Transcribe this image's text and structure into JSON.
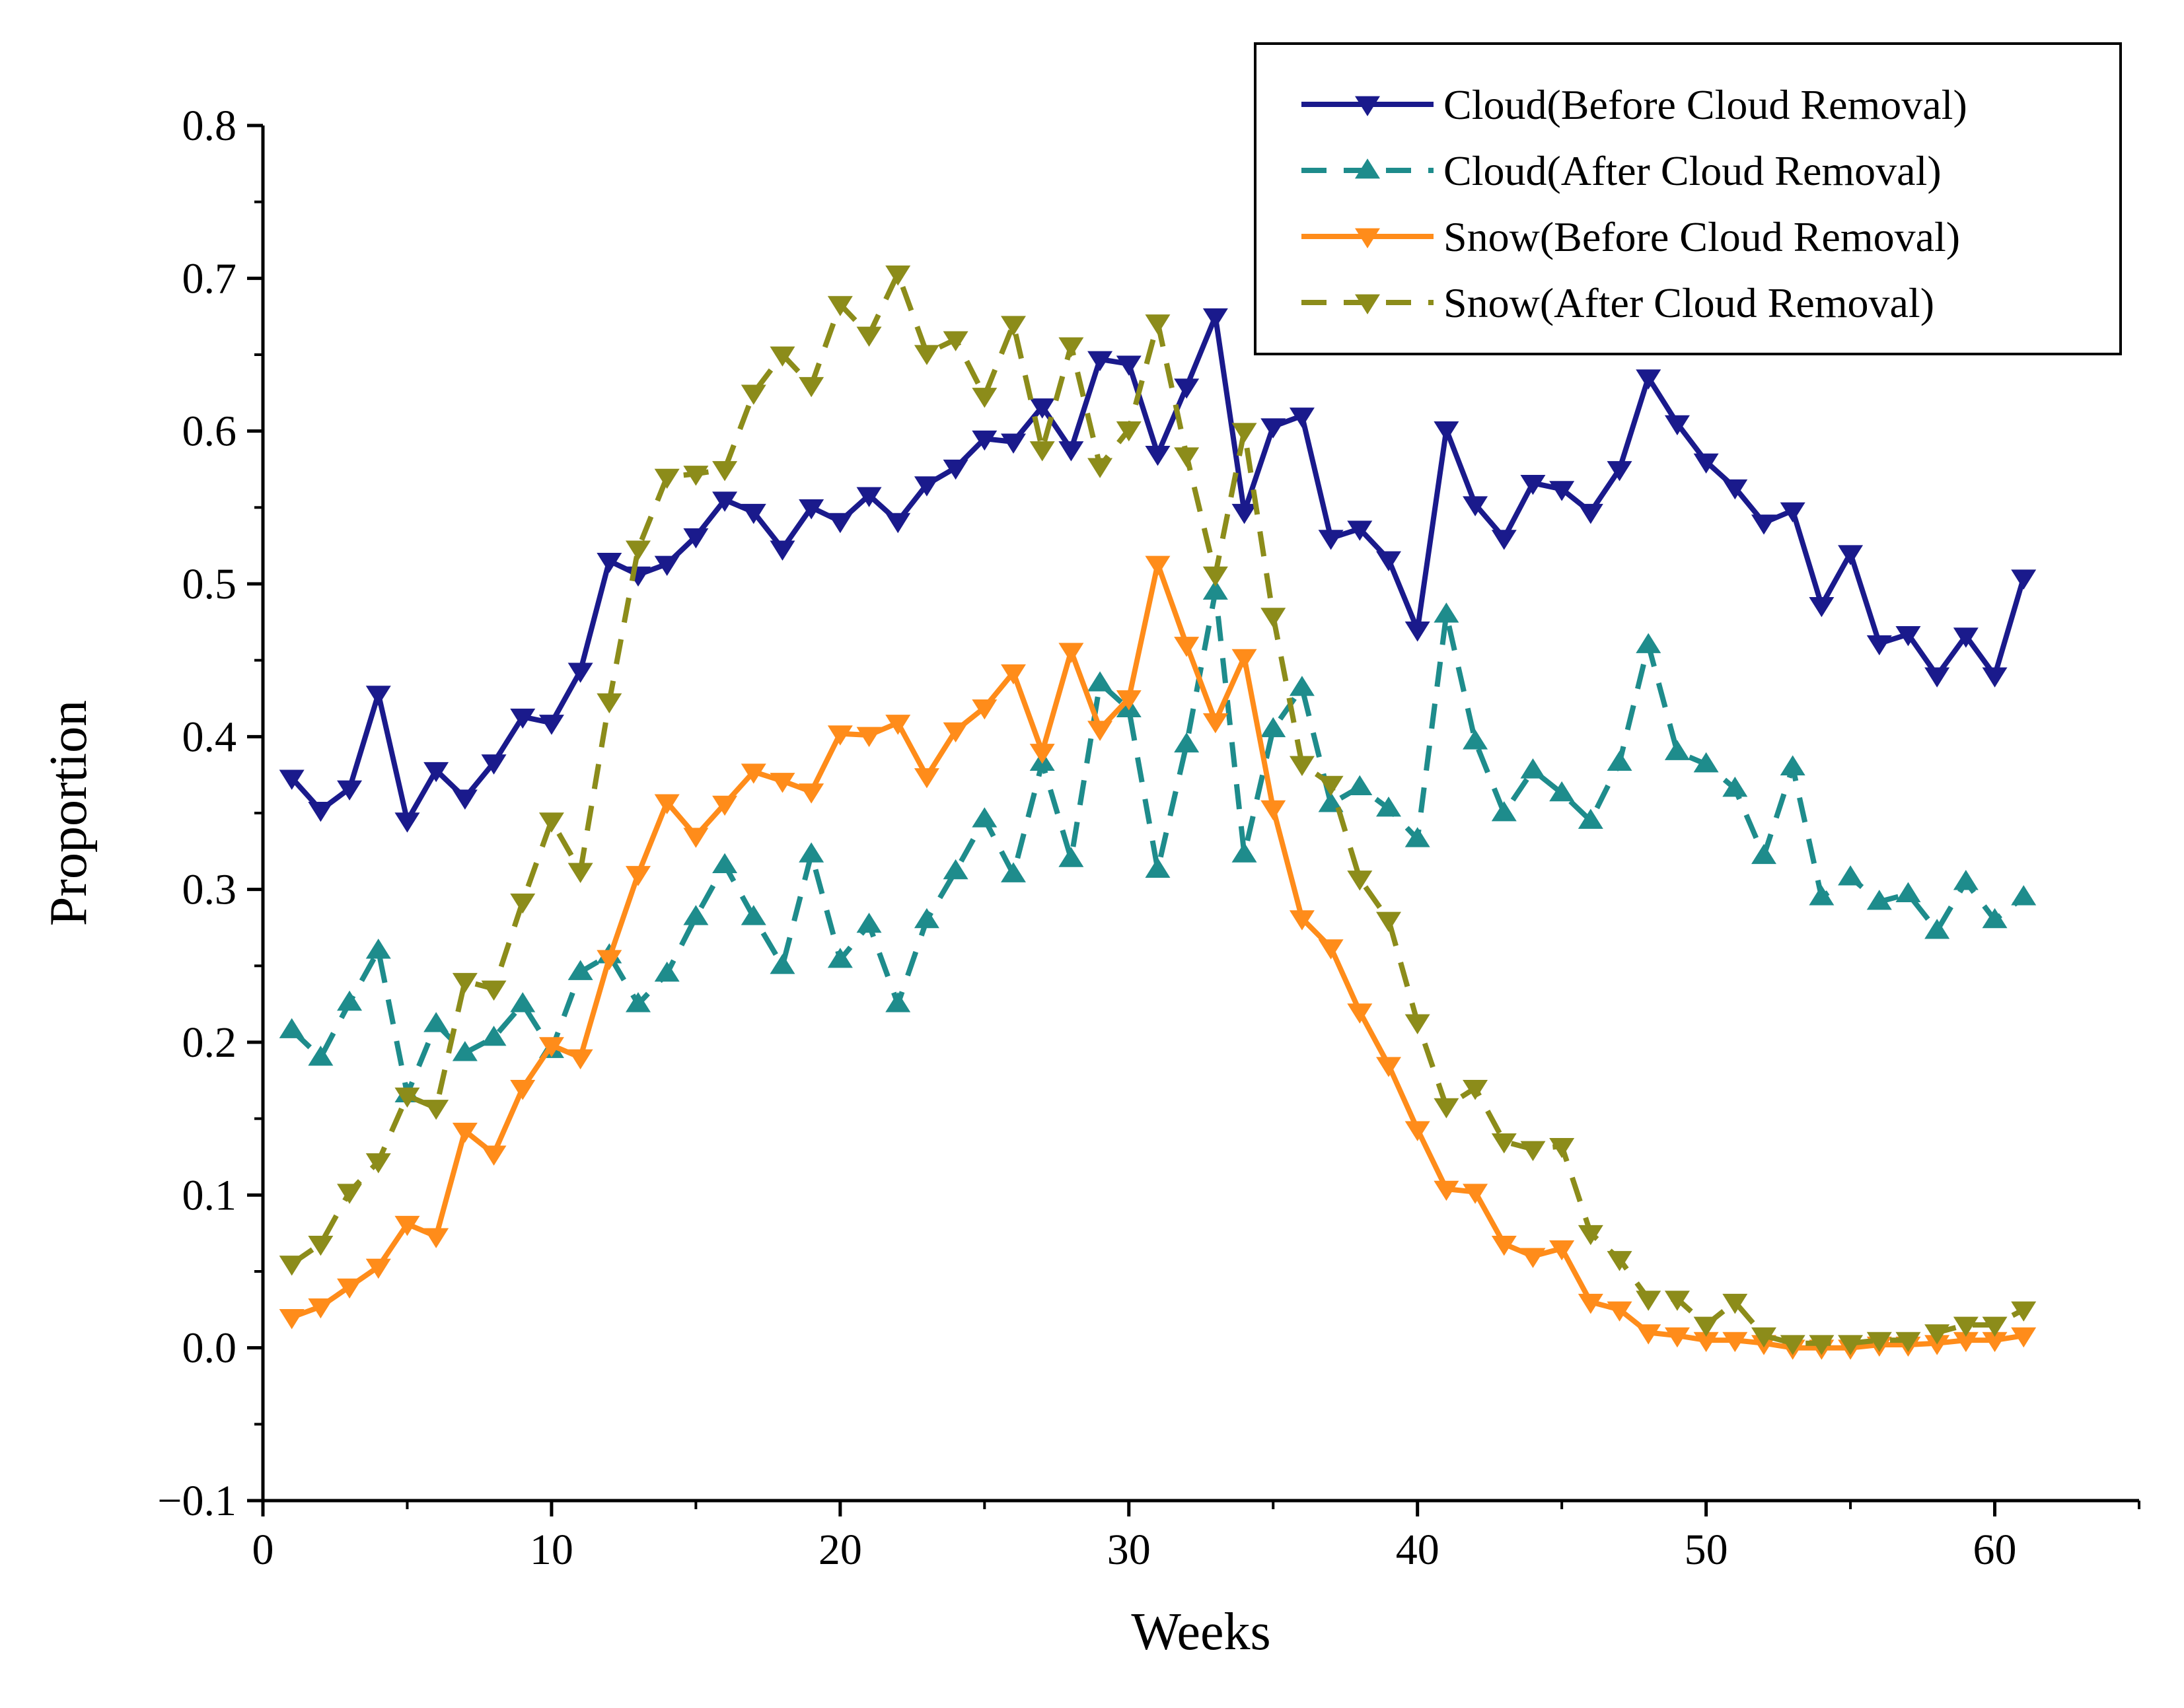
{
  "chart_data": {
    "type": "line",
    "title": "",
    "xlabel": "Weeks",
    "ylabel": "Proportion",
    "xlim": [
      0,
      65
    ],
    "ylim": [
      -0.1,
      0.8
    ],
    "x_ticks": [
      0,
      10,
      20,
      30,
      40,
      50,
      60
    ],
    "x_tick_labels": [
      "0",
      "10",
      "20",
      "30",
      "40",
      "50",
      "60"
    ],
    "y_ticks": [
      -0.1,
      0.0,
      0.1,
      0.2,
      0.3,
      0.4,
      0.5,
      0.6,
      0.7,
      0.8
    ],
    "y_tick_labels": [
      "−0.1",
      "0.0",
      "0.1",
      "0.2",
      "0.3",
      "0.4",
      "0.5",
      "0.6",
      "0.7",
      "0.8"
    ],
    "grid": false,
    "legend_position": "top-right",
    "x": [
      1,
      2,
      3,
      4,
      5,
      6,
      7,
      8,
      9,
      10,
      11,
      12,
      13,
      14,
      15,
      16,
      17,
      18,
      19,
      20,
      21,
      22,
      23,
      24,
      25,
      26,
      27,
      28,
      29,
      30,
      31,
      32,
      33,
      34,
      35,
      36,
      37,
      38,
      39,
      40,
      41,
      42,
      43,
      44,
      45,
      46,
      47,
      48,
      49,
      50,
      51,
      52,
      53,
      54,
      55,
      56,
      57,
      58,
      59,
      60,
      61
    ],
    "series": [
      {
        "name": "Cloud(Before Cloud Removal)",
        "color": "#1a1a8c",
        "dash": "solid",
        "marker": "triangle-down",
        "values": [
          0.373,
          0.352,
          0.366,
          0.428,
          0.345,
          0.378,
          0.36,
          0.383,
          0.413,
          0.409,
          0.443,
          0.515,
          0.506,
          0.513,
          0.531,
          0.555,
          0.547,
          0.523,
          0.55,
          0.541,
          0.558,
          0.541,
          0.565,
          0.576,
          0.595,
          0.593,
          0.616,
          0.588,
          0.647,
          0.644,
          0.585,
          0.629,
          0.675,
          0.547,
          0.603,
          0.61,
          0.53,
          0.536,
          0.516,
          0.47,
          0.601,
          0.552,
          0.53,
          0.566,
          0.562,
          0.547,
          0.575,
          0.635,
          0.605,
          0.58,
          0.563,
          0.54,
          0.548,
          0.486,
          0.52,
          0.461,
          0.467,
          0.44,
          0.466,
          0.44,
          0.504
        ]
      },
      {
        "name": "Cloud(After Cloud Removal)",
        "color": "#1e8c8c",
        "dash": "dashed",
        "marker": "triangle-up",
        "values": [
          0.208,
          0.19,
          0.226,
          0.26,
          0.166,
          0.212,
          0.193,
          0.203,
          0.225,
          0.195,
          0.246,
          0.257,
          0.225,
          0.245,
          0.282,
          0.316,
          0.282,
          0.25,
          0.323,
          0.254,
          0.277,
          0.225,
          0.28,
          0.312,
          0.346,
          0.31,
          0.383,
          0.32,
          0.435,
          0.418,
          0.313,
          0.395,
          0.495,
          0.323,
          0.405,
          0.432,
          0.356,
          0.367,
          0.353,
          0.333,
          0.48,
          0.397,
          0.35,
          0.378,
          0.363,
          0.345,
          0.383,
          0.46,
          0.39,
          0.382,
          0.366,
          0.322,
          0.38,
          0.295,
          0.308,
          0.292,
          0.297,
          0.273,
          0.305,
          0.28,
          0.295
        ]
      },
      {
        "name": "Snow(Before Cloud Removal)",
        "color": "#ff8c1a",
        "dash": "solid",
        "marker": "triangle-down",
        "values": [
          0.02,
          0.027,
          0.04,
          0.053,
          0.081,
          0.073,
          0.142,
          0.127,
          0.17,
          0.198,
          0.19,
          0.255,
          0.31,
          0.357,
          0.335,
          0.356,
          0.377,
          0.371,
          0.364,
          0.402,
          0.401,
          0.409,
          0.374,
          0.404,
          0.419,
          0.442,
          0.39,
          0.456,
          0.405,
          0.425,
          0.513,
          0.46,
          0.41,
          0.452,
          0.353,
          0.281,
          0.262,
          0.22,
          0.185,
          0.143,
          0.104,
          0.102,
          0.068,
          0.06,
          0.065,
          0.03,
          0.025,
          0.01,
          0.008,
          0.005,
          0.005,
          0.003,
          0.0,
          0.0,
          0.0,
          0.002,
          0.002,
          0.003,
          0.005,
          0.005,
          0.008
        ]
      },
      {
        "name": "Snow(After Cloud Removal)",
        "color": "#8c8c1a",
        "dash": "dashed",
        "marker": "triangle-down",
        "values": [
          0.055,
          0.068,
          0.102,
          0.122,
          0.165,
          0.157,
          0.24,
          0.235,
          0.292,
          0.345,
          0.312,
          0.423,
          0.523,
          0.57,
          0.572,
          0.575,
          0.625,
          0.65,
          0.63,
          0.683,
          0.663,
          0.703,
          0.651,
          0.66,
          0.623,
          0.67,
          0.588,
          0.656,
          0.577,
          0.601,
          0.671,
          0.584,
          0.506,
          0.6,
          0.479,
          0.382,
          0.369,
          0.307,
          0.28,
          0.213,
          0.158,
          0.17,
          0.135,
          0.13,
          0.132,
          0.075,
          0.058,
          0.032,
          0.032,
          0.015,
          0.03,
          0.008,
          0.003,
          0.003,
          0.003,
          0.005,
          0.005,
          0.01,
          0.015,
          0.015,
          0.025
        ]
      }
    ]
  }
}
